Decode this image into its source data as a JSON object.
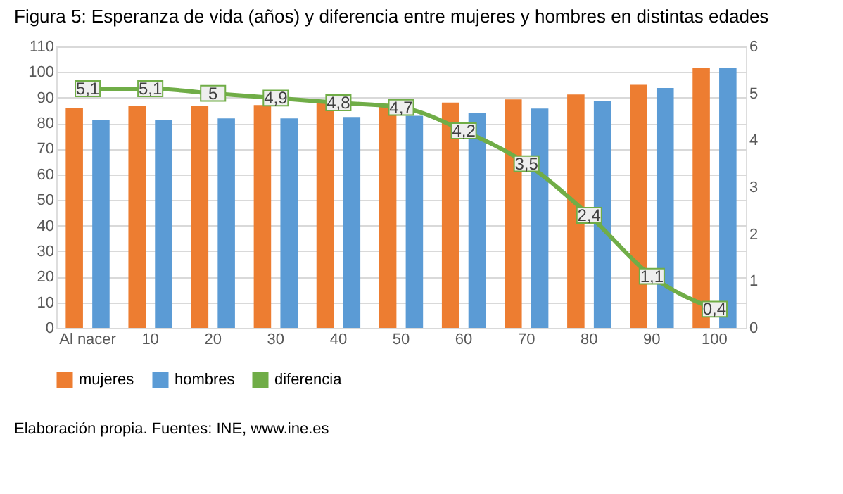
{
  "chart_data": {
    "type": "bar",
    "title": "Figura 5: Esperanza de vida (años) y diferencia entre mujeres y hombres en distintas edades",
    "categories": [
      "Al nacer",
      "10",
      "20",
      "30",
      "40",
      "50",
      "60",
      "70",
      "80",
      "90",
      "100"
    ],
    "series": [
      {
        "name": "mujeres",
        "color": "#ed7d31",
        "values": [
          86.0,
          86.6,
          86.6,
          87.1,
          87.8,
          87.6,
          88.1,
          89.3,
          91.2,
          95.0,
          101.6
        ]
      },
      {
        "name": "hombres",
        "color": "#5b9bd5",
        "values": [
          81.4,
          81.4,
          81.9,
          81.9,
          82.4,
          82.9,
          84.0,
          85.7,
          88.6,
          93.8,
          101.6
        ]
      },
      {
        "name": "diferencia",
        "type": "line",
        "axis": "y2",
        "marker": "square",
        "color": "#70ad47",
        "values": [
          5.1,
          5.1,
          5.0,
          4.9,
          4.8,
          4.7,
          4.2,
          3.5,
          2.4,
          1.1,
          0.4
        ],
        "value_labels": [
          "5,1",
          "5,1",
          "5",
          "4,9",
          "4,8",
          "4,7",
          "4,2",
          "3,5",
          "2,4",
          "1,1",
          "0,4"
        ]
      }
    ],
    "ylim": [
      0,
      110
    ],
    "yticks": [
      0,
      10,
      20,
      30,
      40,
      50,
      60,
      70,
      80,
      90,
      100,
      110
    ],
    "y2lim": [
      0,
      6
    ],
    "y2ticks": [
      0,
      1,
      2,
      3,
      4,
      5,
      6
    ],
    "grid": "y",
    "legend": "bottom",
    "annotations": [
      "Elaboración propia. Fuentes: INE, www.ine.es"
    ]
  }
}
